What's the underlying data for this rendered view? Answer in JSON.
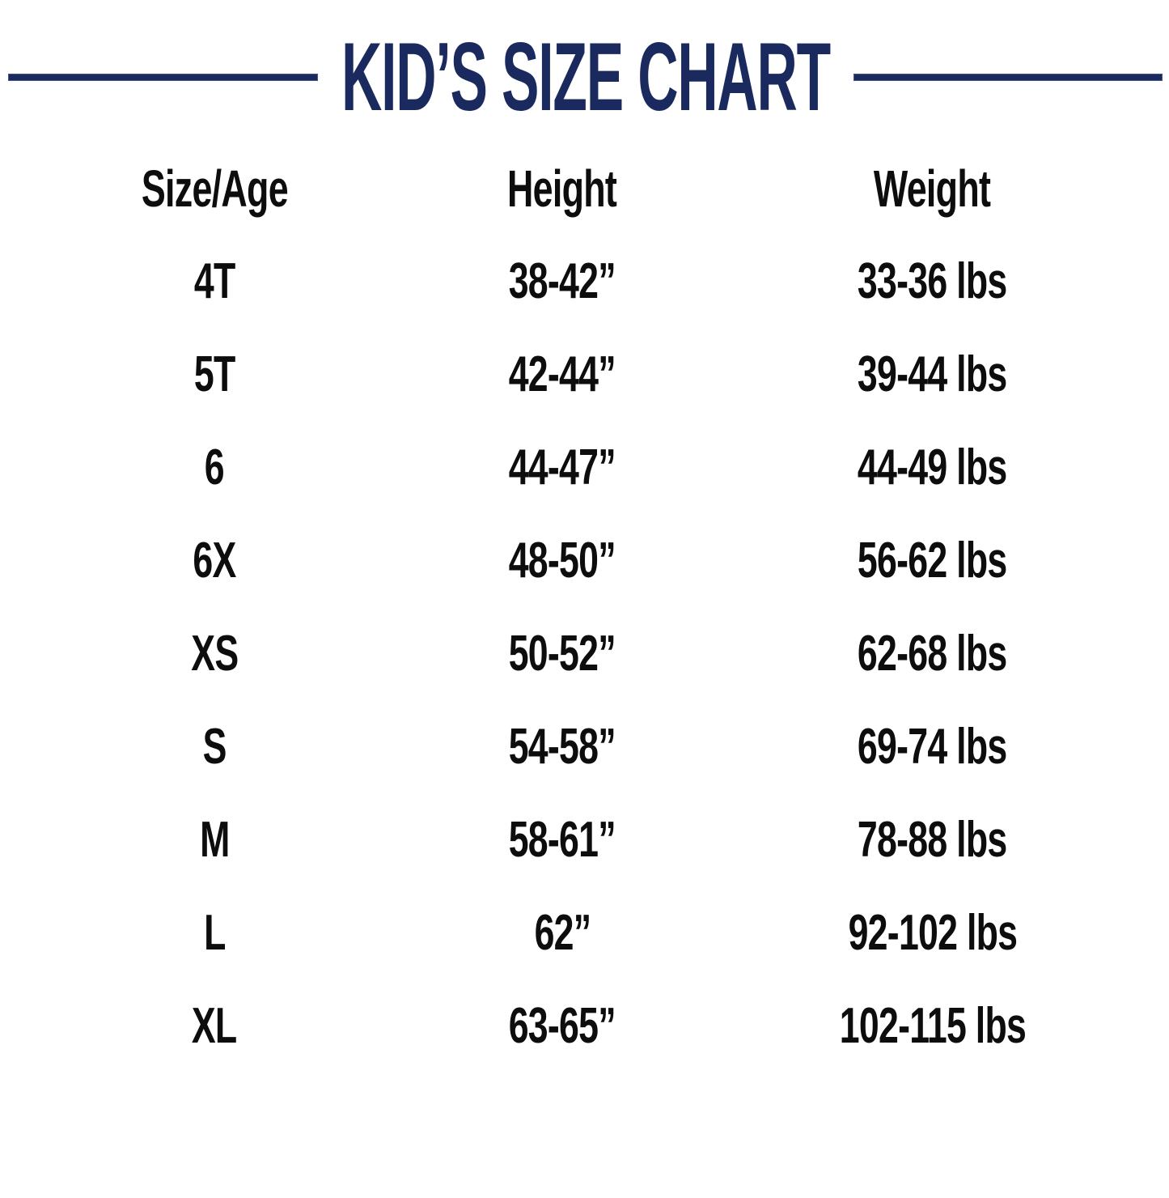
{
  "title": "KID’S SIZE CHART",
  "colors": {
    "accent": "#1b2a5e",
    "text": "#0d0d0d",
    "background": "#ffffff"
  },
  "chart_data": {
    "type": "table",
    "title": "KID’S SIZE CHART",
    "columns": [
      "Size/Age",
      "Height",
      "Weight"
    ],
    "rows": [
      [
        "4T",
        "38-42”",
        "33-36 lbs"
      ],
      [
        "5T",
        "42-44”",
        "39-44 lbs"
      ],
      [
        "6",
        "44-47”",
        "44-49 lbs"
      ],
      [
        "6X",
        "48-50”",
        "56-62 lbs"
      ],
      [
        "XS",
        "50-52”",
        "62-68 lbs"
      ],
      [
        "S",
        "54-58”",
        "69-74 lbs"
      ],
      [
        "M",
        "58-61”",
        "78-88 lbs"
      ],
      [
        "L",
        "62”",
        "92-102 lbs"
      ],
      [
        "XL",
        "63-65”",
        "102-115 lbs"
      ]
    ]
  }
}
